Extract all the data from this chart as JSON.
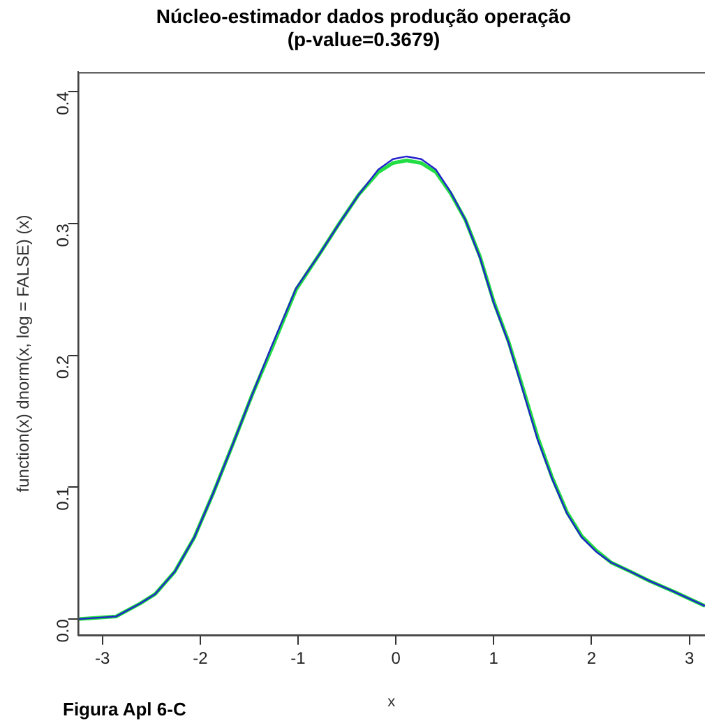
{
  "chart_data": {
    "type": "line",
    "title": [
      "Núcleo-estimador dados produção operação",
      "(p-value=0.3679)"
    ],
    "xlabel": "x",
    "ylabel": "function(x) dnorm(x, log = FALSE) (x)",
    "annotations": [
      "Figura Apl 6-C"
    ],
    "xlim": [
      -3.25,
      3.16
    ],
    "ylim": [
      -0.012,
      0.415
    ],
    "xticks": [
      -3,
      -2,
      -1,
      0,
      1,
      2,
      3
    ],
    "yticks": [
      {
        "value": 0,
        "label": "0.0"
      },
      0.1,
      0.2,
      0.3,
      0.4
    ],
    "grid": false,
    "legend": false,
    "marker": "none",
    "line_style": "solid",
    "series": [
      {
        "color": "#22dd44",
        "x": [
          -3.25,
          -2.86,
          -2.61,
          -2.46,
          -2.26,
          -2.06,
          -1.87,
          -1.67,
          -1.47,
          -1.27,
          -1.02,
          -0.78,
          -0.58,
          -0.38,
          -0.18,
          -0.03,
          0.11,
          0.26,
          0.41,
          0.56,
          0.71,
          0.86,
          1.0,
          1.15,
          1.3,
          1.45,
          1.6,
          1.75,
          1.9,
          2.05,
          2.2,
          2.4,
          2.59,
          2.84,
          3.16
        ],
        "values": [
          0,
          0.002,
          0.012,
          0.019,
          0.036,
          0.062,
          0.095,
          0.132,
          0.17,
          0.205,
          0.25,
          0.277,
          0.3,
          0.322,
          0.339,
          0.346,
          0.348,
          0.346,
          0.339,
          0.323,
          0.303,
          0.275,
          0.241,
          0.211,
          0.175,
          0.138,
          0.107,
          0.081,
          0.063,
          0.052,
          0.043,
          0.036,
          0.029,
          0.021,
          0.01
        ]
      },
      {
        "color": "#2222cc",
        "x": [
          -3.25,
          -2.86,
          -2.61,
          -2.46,
          -2.26,
          -2.06,
          -1.87,
          -1.67,
          -1.47,
          -1.27,
          -1.02,
          -0.78,
          -0.58,
          -0.38,
          -0.18,
          -0.03,
          0.11,
          0.26,
          0.41,
          0.56,
          0.71,
          0.86,
          1.0,
          1.15,
          1.3,
          1.45,
          1.6,
          1.75,
          1.9,
          2.05,
          2.2,
          2.4,
          2.59,
          2.84,
          3.16
        ],
        "values": [
          0,
          0.002,
          0.012,
          0.019,
          0.036,
          0.062,
          0.095,
          0.132,
          0.17,
          0.207,
          0.251,
          0.277,
          0.3,
          0.322,
          0.341,
          0.349,
          0.351,
          0.349,
          0.341,
          0.324,
          0.303,
          0.274,
          0.24,
          0.21,
          0.173,
          0.136,
          0.106,
          0.08,
          0.062,
          0.051,
          0.043,
          0.036,
          0.029,
          0.021,
          0.01
        ]
      }
    ]
  }
}
